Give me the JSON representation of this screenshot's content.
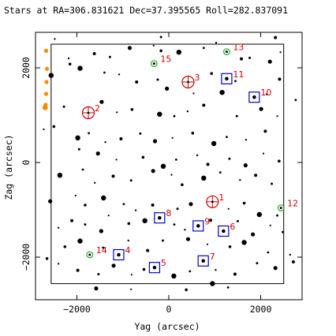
{
  "chart_data": {
    "type": "scatter",
    "title": "Stars at RA=306.831621 Dec=37.395565 Roll=282.837091",
    "xlabel": "Yag (arcsec)",
    "ylabel": "Zag (arcsec)",
    "xlim": [
      -2900,
      2900
    ],
    "ylim": [
      -2900,
      2750
    ],
    "xticks": [
      -2000,
      0,
      2000
    ],
    "yticks": [
      -2000,
      0,
      2000
    ],
    "xtick_labels": [
      "−2000",
      "0",
      "2000"
    ],
    "ytick_labels": [
      "−2000",
      "0",
      "2000"
    ],
    "grid": false,
    "colors": {
      "field_stars": "#000000",
      "guide_box": "#0000cc",
      "acq_circle": "#cc0000",
      "green_circle": "#22aa22",
      "annotation": "#d00000",
      "orange_points": "#ff8800"
    },
    "field_of_view": {
      "y_range": [
        -2560,
        2500
      ],
      "z_range": [
        -2560,
        2500
      ]
    },
    "catalog": [
      {
        "id": "1",
        "y": 950,
        "z": -830,
        "mark": "acq_circle"
      },
      {
        "id": "2",
        "y": -1750,
        "z": 1050,
        "mark": "acq_circle"
      },
      {
        "id": "3",
        "y": 420,
        "z": 1700,
        "mark": "acq_circle"
      },
      {
        "id": "4",
        "y": -1090,
        "z": -1950,
        "mark": "guide_box"
      },
      {
        "id": "5",
        "y": -310,
        "z": -2220,
        "mark": "guide_box"
      },
      {
        "id": "6",
        "y": 1190,
        "z": -1450,
        "mark": "guide_box"
      },
      {
        "id": "7",
        "y": 750,
        "z": -2080,
        "mark": "guide_box"
      },
      {
        "id": "8",
        "y": -200,
        "z": -1170,
        "mark": "guide_box"
      },
      {
        "id": "9",
        "y": 640,
        "z": -1340,
        "mark": "guide_box"
      },
      {
        "id": "10",
        "y": 1860,
        "z": 1380,
        "mark": "guide_box"
      },
      {
        "id": "11",
        "y": 1260,
        "z": 1770,
        "mark": "guide_box"
      },
      {
        "id": "12",
        "y": 2440,
        "z": -960,
        "mark": "green_circle"
      },
      {
        "id": "13",
        "y": 1260,
        "z": 2340,
        "mark": "green_circle"
      },
      {
        "id": "14",
        "y": -1720,
        "z": -1950,
        "mark": "green_circle"
      },
      {
        "id": "15",
        "y": -320,
        "z": 2090,
        "mark": "green_circle"
      }
    ],
    "field_stars": [
      [
        -2180,
        2200
      ],
      [
        -1620,
        2300
      ],
      [
        -1280,
        2230
      ],
      [
        -850,
        2420
      ],
      [
        -330,
        2470
      ],
      [
        -170,
        2360
      ],
      [
        220,
        2330
      ],
      [
        760,
        2420
      ],
      [
        1030,
        2530
      ],
      [
        1580,
        2190
      ],
      [
        1760,
        2210
      ],
      [
        2200,
        2130
      ],
      [
        2430,
        2330
      ],
      [
        -2150,
        2080
      ],
      [
        -1930,
        1990
      ],
      [
        -1400,
        1900
      ],
      [
        -1080,
        1860
      ],
      [
        -700,
        1700
      ],
      [
        -240,
        1750
      ],
      [
        -40,
        1560
      ],
      [
        540,
        1460
      ],
      [
        930,
        1880
      ],
      [
        1160,
        1480
      ],
      [
        1450,
        1720
      ],
      [
        2130,
        1440
      ],
      [
        2410,
        1760
      ],
      [
        -2280,
        1180
      ],
      [
        -1460,
        1280
      ],
      [
        -1130,
        1060
      ],
      [
        -800,
        1120
      ],
      [
        -200,
        1020
      ],
      [
        120,
        980
      ],
      [
        410,
        1080
      ],
      [
        760,
        1210
      ],
      [
        1480,
        980
      ],
      [
        2010,
        1130
      ],
      [
        2360,
        980
      ],
      [
        -2500,
        760
      ],
      [
        -1980,
        520
      ],
      [
        -1740,
        620
      ],
      [
        -1380,
        430
      ],
      [
        -1040,
        500
      ],
      [
        -620,
        610
      ],
      [
        -300,
        450
      ],
      [
        80,
        520
      ],
      [
        520,
        620
      ],
      [
        980,
        400
      ],
      [
        1260,
        540
      ],
      [
        1680,
        480
      ],
      [
        2100,
        660
      ],
      [
        -1950,
        280
      ],
      [
        -1540,
        190
      ],
      [
        -1140,
        60
      ],
      [
        -560,
        110
      ],
      [
        -120,
        -80
      ],
      [
        160,
        60
      ],
      [
        620,
        150
      ],
      [
        850,
        -40
      ],
      [
        1320,
        80
      ],
      [
        1670,
        -60
      ],
      [
        2060,
        190
      ],
      [
        2400,
        30
      ],
      [
        -2370,
        -270
      ],
      [
        -1870,
        -150
      ],
      [
        -1610,
        -430
      ],
      [
        -1210,
        -290
      ],
      [
        -820,
        -380
      ],
      [
        -340,
        -180
      ],
      [
        60,
        -260
      ],
      [
        290,
        -470
      ],
      [
        760,
        -330
      ],
      [
        1120,
        -210
      ],
      [
        1550,
        -370
      ],
      [
        1890,
        -270
      ],
      [
        2240,
        -450
      ],
      [
        -2580,
        -820
      ],
      [
        -2030,
        -700
      ],
      [
        -1820,
        -900
      ],
      [
        -1420,
        -750
      ],
      [
        -980,
        -880
      ],
      [
        -720,
        -1010
      ],
      [
        -350,
        -900
      ],
      [
        190,
        -980
      ],
      [
        480,
        -880
      ],
      [
        1300,
        -980
      ],
      [
        1640,
        -860
      ],
      [
        1970,
        -1100
      ],
      [
        2360,
        -1120
      ],
      [
        -2400,
        -1380
      ],
      [
        -2110,
        -1230
      ],
      [
        -1820,
        -1310
      ],
      [
        -1470,
        -1450
      ],
      [
        -1310,
        -1120
      ],
      [
        -870,
        -1290
      ],
      [
        -520,
        -1230
      ],
      [
        120,
        -1310
      ],
      [
        350,
        -1420
      ],
      [
        910,
        -1220
      ],
      [
        1500,
        -1240
      ],
      [
        1830,
        -1520
      ],
      [
        2210,
        -1330
      ],
      [
        -2260,
        -1780
      ],
      [
        -1930,
        -1660
      ],
      [
        -1430,
        -1800
      ],
      [
        -880,
        -1650
      ],
      [
        -460,
        -1860
      ],
      [
        -130,
        -1650
      ],
      [
        420,
        -1620
      ],
      [
        840,
        -1730
      ],
      [
        1330,
        -1780
      ],
      [
        1640,
        -1690
      ],
      [
        2160,
        -1900
      ],
      [
        -2400,
        -2140
      ],
      [
        -1980,
        -2280
      ],
      [
        -1530,
        -2360
      ],
      [
        -1200,
        -2180
      ],
      [
        -810,
        -2370
      ],
      [
        -540,
        -2260
      ],
      [
        110,
        -2400
      ],
      [
        460,
        -2300
      ],
      [
        1020,
        -2270
      ],
      [
        1440,
        -2360
      ],
      [
        1920,
        -2130
      ],
      [
        2320,
        -2230
      ],
      [
        -2720,
        700
      ],
      [
        -2650,
        -2030
      ],
      [
        -2560,
        1840
      ],
      [
        2760,
        1320
      ],
      [
        2640,
        -1950
      ],
      [
        2710,
        -2100
      ],
      [
        2480,
        -1470
      ],
      [
        -1580,
        -2660
      ],
      [
        -820,
        -2680
      ],
      [
        380,
        -2690
      ],
      [
        950,
        -2560
      ],
      [
        1290,
        -2640
      ],
      [
        -2480,
        2610
      ],
      [
        2320,
        2640
      ],
      [
        -170,
        2650
      ]
    ],
    "off_chip_points": [
      [
        -2670,
        2360
      ],
      [
        -2650,
        1980
      ],
      [
        -2660,
        1700
      ],
      [
        -2670,
        1450
      ],
      [
        -2680,
        1220
      ],
      [
        -2690,
        1160
      ]
    ]
  }
}
